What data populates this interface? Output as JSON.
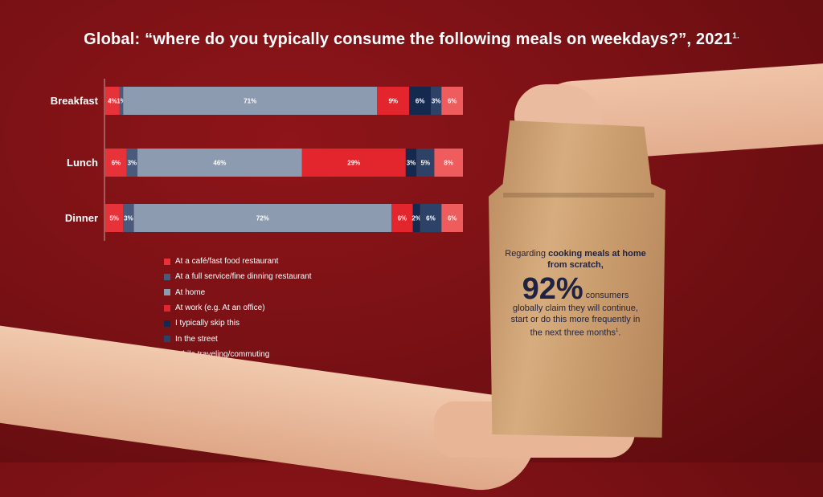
{
  "title_main": "Global: “where do you typically consume the following meals on weekdays?”, 2021",
  "title_sup": "1.",
  "chart_data": {
    "type": "bar",
    "orientation": "horizontal",
    "stacked": true,
    "percent": true,
    "categories": [
      "Breakfast",
      "Lunch",
      "Dinner"
    ],
    "series": [
      {
        "name": "At a café/fast food restaurant",
        "color": "#e8323a",
        "values": [
          4,
          6,
          5
        ]
      },
      {
        "name": "At a full service/fine dinning restaurant",
        "color": "#4a5a7a",
        "values": [
          1,
          3,
          3
        ]
      },
      {
        "name": "At home",
        "color": "#8d9bb1",
        "values": [
          71,
          46,
          72
        ]
      },
      {
        "name": "At work (e.g. At an office)",
        "color": "#e3262d",
        "values": [
          9,
          29,
          6
        ]
      },
      {
        "name": "I typically skip this",
        "color": "#15284e",
        "values": [
          6,
          3,
          2
        ]
      },
      {
        "name": "In the street",
        "color": "#2d4266",
        "values": [
          3,
          5,
          6
        ]
      },
      {
        "name": "While traveling/commuting",
        "color": "#ee5c5d",
        "values": [
          6,
          8,
          6
        ]
      }
    ],
    "legend_position": "bottom-left"
  },
  "callout": {
    "intro_plain": "Regarding ",
    "intro_bold": "cooking meals at home from scratch,",
    "stat": "92%",
    "stat_tail": "consumers",
    "body": "globally claim they will continue, start or do this more frequently in the next three months",
    "footnote": "1",
    "end": "."
  }
}
